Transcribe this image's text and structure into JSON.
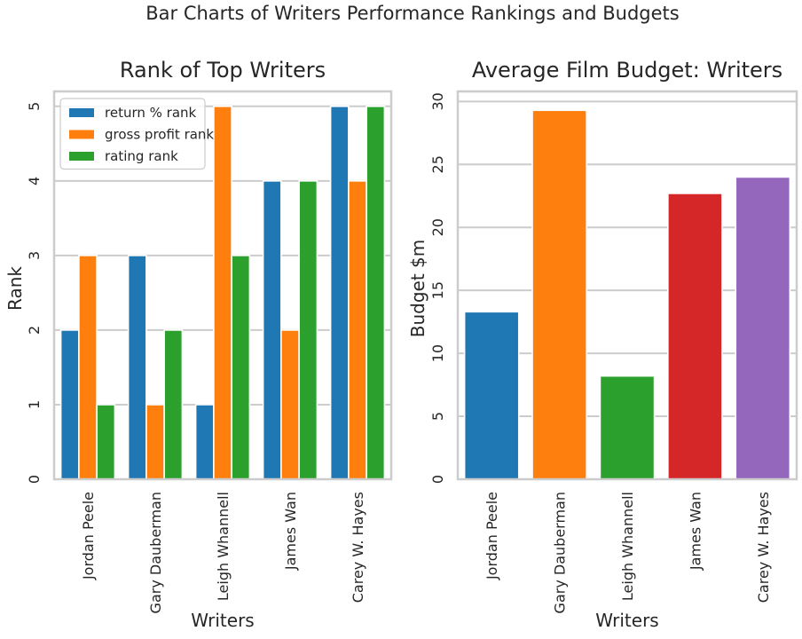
{
  "suptitle": "Bar Charts of Writers Performance Rankings and Budgets",
  "chart_data": [
    {
      "type": "bar",
      "title": "Rank of Top Writers",
      "xlabel": "Writers",
      "ylabel": "Rank",
      "categories": [
        "Jordan Peele",
        "Gary Dauberman",
        "Leigh Whannell",
        "James Wan",
        "Carey W. Hayes"
      ],
      "series": [
        {
          "name": "return % rank",
          "color": "#1f77b4",
          "values": [
            2,
            3,
            1,
            4,
            5
          ]
        },
        {
          "name": "gross profit rank",
          "color": "#ff7f0e",
          "values": [
            3,
            1,
            5,
            2,
            4
          ]
        },
        {
          "name": "rating rank",
          "color": "#2ca02c",
          "values": [
            1,
            2,
            3,
            4,
            5
          ]
        }
      ],
      "ylim": [
        0,
        5.2
      ],
      "yticks": [
        0,
        1,
        2,
        3,
        4,
        5
      ],
      "grid": true,
      "legend": "top-left"
    },
    {
      "type": "bar",
      "title": "Average Film Budget: Writers",
      "xlabel": "Writers",
      "ylabel": "Budget $m",
      "categories": [
        "Jordan Peele",
        "Gary Dauberman",
        "Leigh Whannell",
        "James Wan",
        "Carey W. Hayes"
      ],
      "values": [
        13.3,
        29.3,
        8.2,
        22.7,
        24.0
      ],
      "colors": [
        "#1f77b4",
        "#ff7f0e",
        "#2ca02c",
        "#d62728",
        "#9467bd"
      ],
      "ylim": [
        0,
        30.8
      ],
      "yticks": [
        0,
        5,
        10,
        15,
        20,
        25,
        30
      ],
      "grid": true
    }
  ]
}
